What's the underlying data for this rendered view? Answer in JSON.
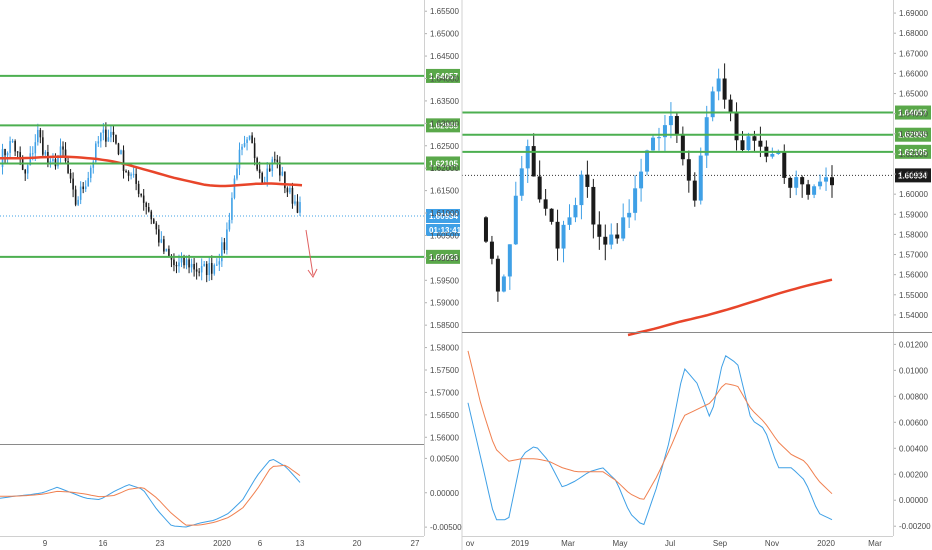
{
  "colors": {
    "level": "#4caf50",
    "level_label": "#5aa84a",
    "candle_up": "#3fa0e6",
    "candle_down": "#1a1a1a",
    "ma": "#e8452a",
    "macd": "#3fa0e6",
    "signal": "#f08050",
    "price_line": "#3fa0e6",
    "arrow": "#e06060",
    "axis_text": "#4a4a4a"
  },
  "chart_data": [
    {
      "name": "left-price",
      "type": "candlestick",
      "y_ticks": [
        "1.65500",
        "1.65000",
        "1.64500",
        "1.64000",
        "1.63500",
        "1.63000",
        "1.62500",
        "1.62000",
        "1.61500",
        "1.61000",
        "1.60500",
        "1.60000",
        "1.59500",
        "1.59000",
        "1.58500",
        "1.58000",
        "1.57500",
        "1.57000",
        "1.56500",
        "1.56000"
      ],
      "y_tick_values": [
        1.655,
        1.65,
        1.645,
        1.64,
        1.635,
        1.63,
        1.625,
        1.62,
        1.615,
        1.61,
        1.605,
        1.6,
        1.595,
        1.59,
        1.585,
        1.58,
        1.575,
        1.57,
        1.565,
        1.56
      ],
      "ylim": [
        1.5585,
        1.6575
      ],
      "x_ticks": [
        "9",
        "16",
        "23",
        "2020",
        "6",
        "13",
        "20",
        "27"
      ],
      "levels": [
        {
          "value": 1.64057,
          "label": "1.64057"
        },
        {
          "value": 1.62955,
          "label": "1.62955"
        },
        {
          "value": 1.62105,
          "label": "1.62105"
        },
        {
          "value": 1.60023,
          "label": "1.60023"
        }
      ],
      "current_price": {
        "value": 1.60934,
        "label": "1.60934",
        "countdown": "01:13:41"
      },
      "ma_values": [
        1.6222,
        1.6222,
        1.6223,
        1.6225,
        1.6226,
        1.6224,
        1.6221,
        1.6216,
        1.6208,
        1.6198,
        1.6188,
        1.6178,
        1.617,
        1.6162,
        1.616,
        1.6162,
        1.6165,
        1.6166,
        1.6164,
        1.6162
      ]
    },
    {
      "name": "left-macd",
      "type": "line",
      "y_ticks": [
        "0.00500",
        "0.00000",
        "-0.00500"
      ],
      "y_tick_values": [
        0.005,
        0.0,
        -0.005
      ],
      "ylim": [
        -0.006,
        0.0068
      ],
      "series": [
        {
          "values": [
            -0.0008,
            -0.0005,
            -0.0003,
            0.0,
            0.0008,
            0.0,
            -0.0008,
            -0.001,
            0.0002,
            0.0012,
            0.0005,
            -0.0025,
            -0.0048,
            -0.005,
            -0.0044,
            -0.004,
            -0.003,
            -0.001,
            0.0025,
            0.005,
            0.0038,
            0.0015
          ]
        },
        {
          "values": [
            -0.0005,
            -0.0005,
            -0.0004,
            -0.0002,
            0.0002,
            0.0001,
            -0.0002,
            -0.0006,
            -0.0004,
            0.0005,
            0.0008,
            -0.0008,
            -0.003,
            -0.0047,
            -0.0047,
            -0.0043,
            -0.0036,
            -0.0022,
            0.0005,
            0.0038,
            0.004,
            0.0025
          ]
        }
      ]
    },
    {
      "name": "right-price",
      "type": "candlestick",
      "y_ticks": [
        "1.69000",
        "1.68000",
        "1.67000",
        "1.66000",
        "1.65000",
        "1.64000",
        "1.63000",
        "1.62000",
        "1.61000",
        "1.60000",
        "1.59000",
        "1.58000",
        "1.57000",
        "1.56000",
        "1.55000",
        "1.54000"
      ],
      "y_tick_values": [
        1.69,
        1.68,
        1.67,
        1.66,
        1.65,
        1.64,
        1.63,
        1.62,
        1.61,
        1.6,
        1.59,
        1.58,
        1.57,
        1.56,
        1.55,
        1.54
      ],
      "ylim": [
        1.5315,
        1.6965
      ],
      "x_ticks": [
        "ov",
        "2019",
        "Mar",
        "May",
        "Jul",
        "Sep",
        "Nov",
        "2020",
        "Mar"
      ],
      "levels": [
        {
          "value": 1.64057,
          "label": "1.64057"
        },
        {
          "value": 1.62955,
          "label": "1.62955"
        },
        {
          "value": 1.62105,
          "label": "1.62105"
        }
      ],
      "current_price": {
        "value": 1.60934,
        "label": "1.60934"
      },
      "ma_values": [
        1.53,
        1.533,
        1.5365,
        1.5395,
        1.543,
        1.547,
        1.551,
        1.5545,
        1.5575
      ]
    },
    {
      "name": "right-macd",
      "type": "line",
      "y_ticks": [
        "0.01200",
        "0.01000",
        "0.00800",
        "0.00600",
        "0.00400",
        "0.00200",
        "0.00000",
        "-0.00200"
      ],
      "y_tick_values": [
        0.012,
        0.01,
        0.008,
        0.006,
        0.004,
        0.002,
        0.0,
        -0.002
      ],
      "ylim": [
        -0.0026,
        0.0128
      ],
      "series": [
        {
          "values": [
            0.0075,
            0.003,
            -0.0015,
            -0.0015,
            0.0035,
            0.0042,
            0.003,
            0.001,
            0.0015,
            0.0022,
            0.0025,
            0.0015,
            -0.001,
            -0.002,
            0.001,
            0.0048,
            0.0102,
            0.009,
            0.0062,
            0.0112,
            0.0105,
            0.0062,
            0.0055,
            0.0025,
            0.0025,
            0.0015,
            -0.001,
            -0.0015
          ]
        },
        {
          "values": [
            0.0115,
            0.0072,
            0.004,
            0.003,
            0.0032,
            0.0032,
            0.003,
            0.0025,
            0.0022,
            0.0022,
            0.0022,
            0.0015,
            0.0005,
            0.0,
            0.0018,
            0.004,
            0.0065,
            0.007,
            0.0075,
            0.009,
            0.0088,
            0.007,
            0.006,
            0.0045,
            0.0035,
            0.003,
            0.0015,
            0.0005
          ]
        }
      ]
    }
  ]
}
